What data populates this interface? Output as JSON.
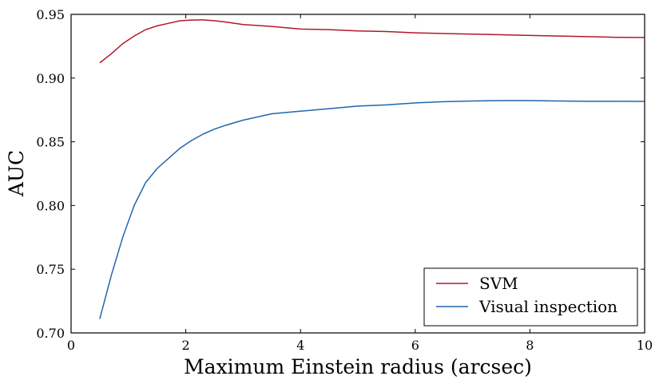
{
  "chart_data": {
    "type": "line",
    "title": "",
    "xlabel": "Maximum Einstein radius (arcsec)",
    "ylabel": "AUC",
    "xlim": [
      0,
      10
    ],
    "ylim": [
      0.7,
      0.95
    ],
    "xticks": [
      0,
      2,
      4,
      6,
      8,
      10
    ],
    "xtick_labels": [
      "0",
      "2",
      "4",
      "6",
      "8",
      "10"
    ],
    "yticks": [
      0.7,
      0.75,
      0.8,
      0.85,
      0.9,
      0.95
    ],
    "ytick_labels": [
      "0.70",
      "0.75",
      "0.80",
      "0.85",
      "0.90",
      "0.95"
    ],
    "grid": false,
    "legend_position": "bottom-right",
    "series": [
      {
        "name": "SVM",
        "color": "#b2182b",
        "x": [
          0.5,
          0.7,
          0.9,
          1.1,
          1.3,
          1.5,
          1.7,
          1.9,
          2.1,
          2.3,
          2.5,
          2.7,
          3.0,
          3.5,
          4.0,
          4.5,
          5.0,
          5.5,
          6.0,
          6.5,
          7.0,
          7.5,
          8.0,
          8.5,
          9.0,
          9.5,
          10.0
        ],
        "y": [
          0.912,
          0.919,
          0.927,
          0.933,
          0.938,
          0.941,
          0.943,
          0.945,
          0.9455,
          0.9457,
          0.945,
          0.944,
          0.942,
          0.9405,
          0.9385,
          0.938,
          0.937,
          0.9365,
          0.9355,
          0.935,
          0.9345,
          0.934,
          0.9335,
          0.933,
          0.9325,
          0.932,
          0.9318
        ]
      },
      {
        "name": "Visual inspection",
        "color": "#2166ac",
        "x": [
          0.5,
          0.7,
          0.9,
          1.1,
          1.3,
          1.5,
          1.7,
          1.9,
          2.1,
          2.3,
          2.5,
          2.7,
          3.0,
          3.5,
          4.0,
          4.5,
          5.0,
          5.5,
          6.0,
          6.5,
          7.0,
          7.5,
          8.0,
          8.5,
          9.0,
          9.5,
          10.0
        ],
        "y": [
          0.711,
          0.745,
          0.775,
          0.8,
          0.818,
          0.829,
          0.837,
          0.845,
          0.851,
          0.856,
          0.86,
          0.863,
          0.867,
          0.872,
          0.874,
          0.876,
          0.878,
          0.879,
          0.8805,
          0.8815,
          0.882,
          0.8823,
          0.8823,
          0.882,
          0.8818,
          0.8818,
          0.8817
        ]
      }
    ]
  }
}
